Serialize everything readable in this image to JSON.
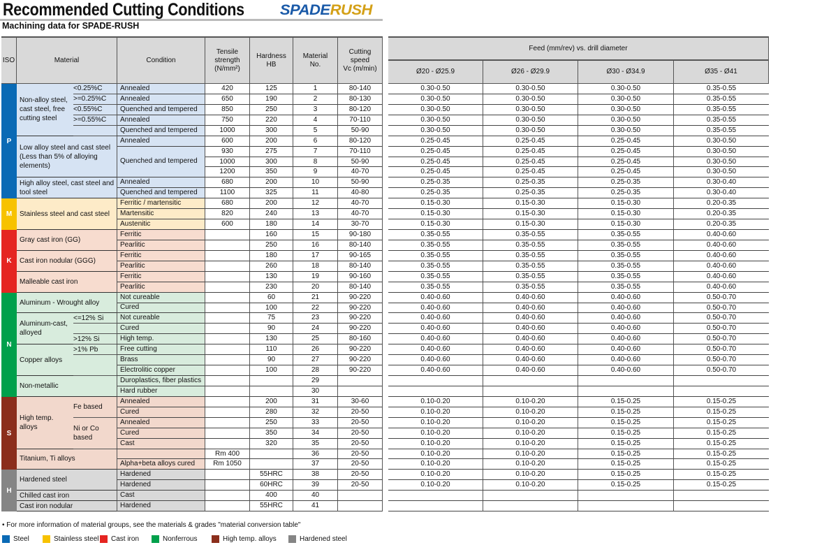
{
  "header": {
    "title": "Recommended Cutting Conditions",
    "logo_a": "SPADE",
    "logo_b": "RUSH",
    "subtitle": "Machining data for SPADE-RUSH"
  },
  "columns": {
    "iso": "ISO",
    "material": "Material",
    "condition": "Condition",
    "tensile": "Tensile\nstrength\n(N/mm²)",
    "hardness": "Hardness\nHB",
    "material_no": "Material\nNo.",
    "speed": "Cutting\nspeed\nVc (m/min)",
    "feed_title": "Feed (mm/rev) vs. drill diameter",
    "feed": [
      "Ø20 - Ø25.9",
      "Ø26 - Ø29.9",
      "Ø30 - Ø34.9",
      "Ø35 - Ø41"
    ]
  },
  "iso_groups": [
    {
      "label": "P",
      "rows": 11,
      "color": "#0a6ab5",
      "bg": "#d6e3f3"
    },
    {
      "label": "M",
      "rows": 3,
      "color": "#f7c200",
      "bg": "#fdebc8"
    },
    {
      "label": "K",
      "rows": 6,
      "color": "#e52521",
      "bg": "#f7dccf"
    },
    {
      "label": "N",
      "rows": 10,
      "color": "#00a04b",
      "bg": "#d8ecdd"
    },
    {
      "label": "S",
      "rows": 7,
      "color": "#8b2e1c",
      "bg": "#f2d8cc"
    },
    {
      "label": "H",
      "rows": 4,
      "color": "#858585",
      "bg": "#d9d9d9"
    }
  ],
  "materials": [
    {
      "name": "Non-alloy steel, cast steel, free cutting steel",
      "rows": 5,
      "subs": [
        {
          "label": "<0.25%C",
          "rows": 1
        },
        {
          "label": ">=0.25%C",
          "rows": 1
        },
        {
          "label": "<0.55%C",
          "rows": 1
        },
        {
          "label": ">=0.55%C",
          "rows": 1
        },
        {
          "label": "",
          "rows": 1
        }
      ]
    },
    {
      "name": "Low alloy steel and cast steel (Less than 5% of alloying elements)",
      "rows": 4
    },
    {
      "name": "High alloy steel, cast steel and tool steel",
      "rows": 2
    },
    {
      "name": "Stainless steel and cast steel",
      "rows": 3
    },
    {
      "name": "Gray cast iron (GG)",
      "rows": 2
    },
    {
      "name": "Cast iron nodular (GGG)",
      "rows": 2
    },
    {
      "name": "Malleable cast iron",
      "rows": 2
    },
    {
      "name": "Aluminum - Wrought alloy",
      "rows": 2
    },
    {
      "name": "Aluminum-cast, alloyed",
      "rows": 3,
      "subs": [
        {
          "label": "<=12% Si",
          "rows": 1
        },
        {
          "label": "",
          "rows": 1
        },
        {
          "label": ">12% Si",
          "rows": 1
        }
      ]
    },
    {
      "name": "Copper alloys",
      "rows": 3,
      "subs": [
        {
          "label": ">1% Pb",
          "rows": 1
        },
        {
          "label": "",
          "rows": 2
        }
      ]
    },
    {
      "name": "Non-metallic",
      "rows": 2
    },
    {
      "name": "High temp. alloys",
      "rows": 5,
      "subs": [
        {
          "label": "Fe based",
          "rows": 2
        },
        {
          "label": "Ni or Co based",
          "rows": 3
        }
      ]
    },
    {
      "name": "Titanium, Ti alloys",
      "rows": 2
    },
    {
      "name": "Hardened steel",
      "rows": 2
    },
    {
      "name": "Chilled cast iron",
      "rows": 1
    },
    {
      "name": "Cast iron nodular",
      "rows": 1
    }
  ],
  "conditions": [
    {
      "label": "Annealed",
      "rows": 1
    },
    {
      "label": "Annealed",
      "rows": 1
    },
    {
      "label": "Quenched and tempered",
      "rows": 1
    },
    {
      "label": "Annealed",
      "rows": 1
    },
    {
      "label": "Quenched and tempered",
      "rows": 1
    },
    {
      "label": "Annealed",
      "rows": 1
    },
    {
      "label": "Quenched and tempered",
      "rows": 3
    },
    {
      "label": "Annealed",
      "rows": 1
    },
    {
      "label": "Quenched and tempered",
      "rows": 1
    },
    {
      "label": "Ferritic / martensitic",
      "rows": 1
    },
    {
      "label": "Martensitic",
      "rows": 1
    },
    {
      "label": "Austenitic",
      "rows": 1
    },
    {
      "label": "Ferritic",
      "rows": 1
    },
    {
      "label": "Pearlitic",
      "rows": 1
    },
    {
      "label": "Ferritic",
      "rows": 1
    },
    {
      "label": "Pearlitic",
      "rows": 1
    },
    {
      "label": "Ferritic",
      "rows": 1
    },
    {
      "label": "Pearlitic",
      "rows": 1
    },
    {
      "label": "Not cureable",
      "rows": 1
    },
    {
      "label": "Cured",
      "rows": 1
    },
    {
      "label": "Not cureable",
      "rows": 1
    },
    {
      "label": "Cured",
      "rows": 1
    },
    {
      "label": "High temp.",
      "rows": 1
    },
    {
      "label": "Free cutting",
      "rows": 1
    },
    {
      "label": "Brass",
      "rows": 1
    },
    {
      "label": "Electrolitic copper",
      "rows": 1
    },
    {
      "label": "Duroplastics, fiber plastics",
      "rows": 1
    },
    {
      "label": "Hard rubber",
      "rows": 1
    },
    {
      "label": "Annealed",
      "rows": 1
    },
    {
      "label": "Cured",
      "rows": 1
    },
    {
      "label": "Annealed",
      "rows": 1
    },
    {
      "label": "Cured",
      "rows": 1
    },
    {
      "label": "Cast",
      "rows": 1
    },
    {
      "label": "",
      "rows": 1
    },
    {
      "label": "Alpha+beta alloys cured",
      "rows": 1
    },
    {
      "label": "Hardened",
      "rows": 1
    },
    {
      "label": "Hardened",
      "rows": 1
    },
    {
      "label": "Cast",
      "rows": 1
    },
    {
      "label": "Hardened",
      "rows": 1
    }
  ],
  "rows": [
    [
      "420",
      "125",
      "1",
      "80-140",
      "0.30-0.50",
      "0.30-0.50",
      "0.30-0.50",
      "0.35-0.55"
    ],
    [
      "650",
      "190",
      "2",
      "80-130",
      "0.30-0.50",
      "0.30-0.50",
      "0.30-0.50",
      "0.35-0.55"
    ],
    [
      "850",
      "250",
      "3",
      "80-120",
      "0.30-0.50",
      "0.30-0.50",
      "0.30-0.50",
      "0.35-0.55"
    ],
    [
      "750",
      "220",
      "4",
      "70-110",
      "0.30-0.50",
      "0.30-0.50",
      "0.30-0.50",
      "0.35-0.55"
    ],
    [
      "1000",
      "300",
      "5",
      "50-90",
      "0.30-0.50",
      "0.30-0.50",
      "0.30-0.50",
      "0.35-0.55"
    ],
    [
      "600",
      "200",
      "6",
      "80-120",
      "0.25-0.45",
      "0.25-0.45",
      "0.25-0.45",
      "0.30-0.50"
    ],
    [
      "930",
      "275",
      "7",
      "70-110",
      "0.25-0.45",
      "0.25-0.45",
      "0.25-0.45",
      "0.30-0.50"
    ],
    [
      "1000",
      "300",
      "8",
      "50-90",
      "0.25-0.45",
      "0.25-0.45",
      "0.25-0.45",
      "0.30-0.50"
    ],
    [
      "1200",
      "350",
      "9",
      "40-70",
      "0.25-0.45",
      "0.25-0.45",
      "0.25-0.45",
      "0.30-0.50"
    ],
    [
      "680",
      "200",
      "10",
      "50-90",
      "0.25-0.35",
      "0.25-0.35",
      "0.25-0.35",
      "0.30-0.40"
    ],
    [
      "1100",
      "325",
      "11",
      "40-80",
      "0.25-0.35",
      "0.25-0.35",
      "0.25-0.35",
      "0.30-0.40"
    ],
    [
      "680",
      "200",
      "12",
      "40-70",
      "0.15-0.30",
      "0.15-0.30",
      "0.15-0.30",
      "0.20-0.35"
    ],
    [
      "820",
      "240",
      "13",
      "40-70",
      "0.15-0.30",
      "0.15-0.30",
      "0.15-0.30",
      "0.20-0.35"
    ],
    [
      "600",
      "180",
      "14",
      "30-70",
      "0.15-0.30",
      "0.15-0.30",
      "0.15-0.30",
      "0.20-0.35"
    ],
    [
      "",
      "160",
      "15",
      "90-180",
      "0.35-0.55",
      "0.35-0.55",
      "0.35-0.55",
      "0.40-0.60"
    ],
    [
      "",
      "250",
      "16",
      "80-140",
      "0.35-0.55",
      "0.35-0.55",
      "0.35-0.55",
      "0.40-0.60"
    ],
    [
      "",
      "180",
      "17",
      "90-165",
      "0.35-0.55",
      "0.35-0.55",
      "0.35-0.55",
      "0.40-0.60"
    ],
    [
      "",
      "260",
      "18",
      "80-140",
      "0.35-0.55",
      "0.35-0.55",
      "0.35-0.55",
      "0.40-0.60"
    ],
    [
      "",
      "130",
      "19",
      "90-160",
      "0.35-0.55",
      "0.35-0.55",
      "0.35-0.55",
      "0.40-0.60"
    ],
    [
      "",
      "230",
      "20",
      "80-140",
      "0.35-0.55",
      "0.35-0.55",
      "0.35-0.55",
      "0.40-0.60"
    ],
    [
      "",
      "60",
      "21",
      "90-220",
      "0.40-0.60",
      "0.40-0.60",
      "0.40-0.60",
      "0.50-0.70"
    ],
    [
      "",
      "100",
      "22",
      "90-220",
      "0.40-0.60",
      "0.40-0.60",
      "0.40-0.60",
      "0.50-0.70"
    ],
    [
      "",
      "75",
      "23",
      "90-220",
      "0.40-0.60",
      "0.40-0.60",
      "0.40-0.60",
      "0.50-0.70"
    ],
    [
      "",
      "90",
      "24",
      "90-220",
      "0.40-0.60",
      "0.40-0.60",
      "0.40-0.60",
      "0.50-0.70"
    ],
    [
      "",
      "130",
      "25",
      "80-160",
      "0.40-0.60",
      "0.40-0.60",
      "0.40-0.60",
      "0.50-0.70"
    ],
    [
      "",
      "110",
      "26",
      "90-220",
      "0.40-0.60",
      "0.40-0.60",
      "0.40-0.60",
      "0.50-0.70"
    ],
    [
      "",
      "90",
      "27",
      "90-220",
      "0.40-0.60",
      "0.40-0.60",
      "0.40-0.60",
      "0.50-0.70"
    ],
    [
      "",
      "100",
      "28",
      "90-220",
      "0.40-0.60",
      "0.40-0.60",
      "0.40-0.60",
      "0.50-0.70"
    ],
    [
      "",
      "",
      "29",
      "",
      "",
      "",
      "",
      ""
    ],
    [
      "",
      "",
      "30",
      "",
      "",
      "",
      "",
      ""
    ],
    [
      "",
      "200",
      "31",
      "30-60",
      "0.10-0.20",
      "0.10-0.20",
      "0.15-0.25",
      "0.15-0.25"
    ],
    [
      "",
      "280",
      "32",
      "20-50",
      "0.10-0.20",
      "0.10-0.20",
      "0.15-0.25",
      "0.15-0.25"
    ],
    [
      "",
      "250",
      "33",
      "20-50",
      "0.10-0.20",
      "0.10-0.20",
      "0.15-0.25",
      "0.15-0.25"
    ],
    [
      "",
      "350",
      "34",
      "20-50",
      "0.10-0.20",
      "0.10-0.20",
      "0.15-0.25",
      "0.15-0.25"
    ],
    [
      "",
      "320",
      "35",
      "20-50",
      "0.10-0.20",
      "0.10-0.20",
      "0.15-0.25",
      "0.15-0.25"
    ],
    [
      "Rm 400",
      "",
      "36",
      "20-50",
      "0.10-0.20",
      "0.10-0.20",
      "0.15-0.25",
      "0.15-0.25"
    ],
    [
      "Rm 1050",
      "",
      "37",
      "20-50",
      "0.10-0.20",
      "0.10-0.20",
      "0.15-0.25",
      "0.15-0.25"
    ],
    [
      "",
      "55HRC",
      "38",
      "20-50",
      "0.10-0.20",
      "0.10-0.20",
      "0.15-0.25",
      "0.15-0.25"
    ],
    [
      "",
      "60HRC",
      "39",
      "20-50",
      "0.10-0.20",
      "0.10-0.20",
      "0.15-0.25",
      "0.15-0.25"
    ],
    [
      "",
      "400",
      "40",
      "",
      "",
      "",
      "",
      ""
    ],
    [
      "",
      "55HRC",
      "41",
      "",
      "",
      "",
      "",
      ""
    ]
  ],
  "footnote": "• For more information of material groups, see the materials & grades \"material conversion table\"",
  "legend": [
    {
      "label": "Steel",
      "color": "#0a6ab5"
    },
    {
      "label": "Stainless steel",
      "color": "#f7c200"
    },
    {
      "label": "Cast iron",
      "color": "#e52521"
    },
    {
      "label": "Nonferrous",
      "color": "#00a04b"
    },
    {
      "label": "High temp. alloys",
      "color": "#8b2e1c"
    },
    {
      "label": "Hardened steel",
      "color": "#858585"
    }
  ]
}
